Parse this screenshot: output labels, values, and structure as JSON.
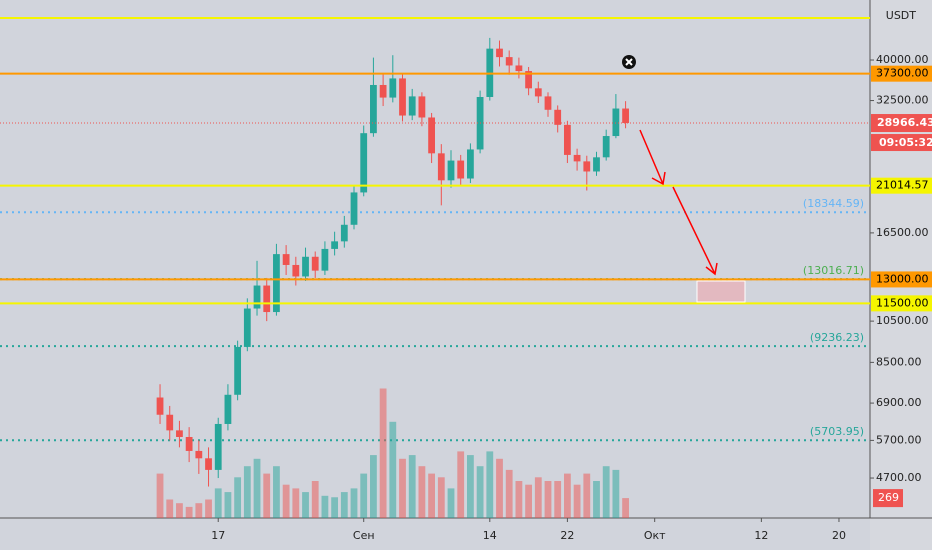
{
  "chart_data": {
    "type": "candlestick",
    "currency": "USDT",
    "log_scale": true,
    "ylim": [
      3830,
      54400
    ],
    "xlim": [
      -16.5,
      73.2
    ],
    "vlim": [
      0,
      7000
    ],
    "up_color": "#26a69a",
    "down_color": "#ef5350",
    "xticks": [
      {
        "value": 6,
        "label": "17"
      },
      {
        "value": 21,
        "label": "Сен"
      },
      {
        "value": 34,
        "label": "14"
      },
      {
        "value": 42,
        "label": "22"
      },
      {
        "value": 51,
        "label": "Окт"
      },
      {
        "value": 62,
        "label": "12"
      },
      {
        "value": 70,
        "label": "20"
      }
    ],
    "yticks": [
      {
        "value": 40000,
        "label": "40000.00"
      },
      {
        "value": 32500,
        "label": "32500.00"
      },
      {
        "value": 16500,
        "label": "16500.00"
      },
      {
        "value": 10500,
        "label": "10500.00"
      },
      {
        "value": 8500,
        "label": "8500.00"
      },
      {
        "value": 6900,
        "label": "6900.00"
      },
      {
        "value": 5700,
        "label": "5700.00"
      },
      {
        "value": 4700,
        "label": "4700.00"
      }
    ],
    "open": [
      7100,
      6500,
      6000,
      5800,
      5400,
      5200,
      4900,
      6200,
      7200,
      9200,
      11200,
      12600,
      11000,
      14800,
      14000,
      13200,
      14600,
      13600,
      15200,
      15800,
      17200,
      20300,
      27500,
      35200,
      33000,
      36400,
      30100,
      33200,
      29800,
      24800,
      21600,
      23900,
      21800,
      25300,
      33100,
      42400,
      40600,
      38900,
      37800,
      34600,
      33200,
      31000,
      28700,
      24600,
      23800,
      22600,
      24300,
      27100,
      31200
    ],
    "high": [
      7600,
      6800,
      6300,
      6100,
      5700,
      5500,
      6400,
      7600,
      9500,
      11800,
      14300,
      13100,
      15600,
      15500,
      14600,
      15300,
      15000,
      15800,
      16600,
      18000,
      21000,
      28600,
      40500,
      37200,
      41000,
      37400,
      34500,
      33900,
      30500,
      26000,
      25200,
      24600,
      26100,
      34200,
      44800,
      44200,
      42000,
      40500,
      38600,
      35800,
      33900,
      31700,
      29300,
      25400,
      24500,
      25000,
      28000,
      33600,
      32400
    ],
    "low": [
      6200,
      5700,
      5500,
      5100,
      4800,
      4500,
      4700,
      6000,
      7000,
      9000,
      10800,
      10500,
      10800,
      13300,
      12600,
      12900,
      13100,
      13300,
      14700,
      15300,
      16800,
      19900,
      27000,
      31600,
      32200,
      29200,
      29400,
      28500,
      23600,
      19000,
      20800,
      21000,
      21300,
      24800,
      32500,
      38700,
      37100,
      36400,
      33400,
      32100,
      29900,
      27600,
      23600,
      22700,
      20500,
      22100,
      23900,
      26800,
      28200
    ],
    "close": [
      6500,
      6000,
      5800,
      5400,
      5200,
      4900,
      6200,
      7200,
      9200,
      11200,
      12600,
      11000,
      14800,
      14000,
      13200,
      14600,
      13600,
      15200,
      15800,
      17200,
      20300,
      27500,
      35200,
      33000,
      36400,
      30100,
      33200,
      29800,
      24800,
      21600,
      23900,
      21800,
      25300,
      33100,
      42400,
      40600,
      38900,
      37800,
      34600,
      33200,
      31000,
      28700,
      24600,
      23800,
      22600,
      24300,
      27100,
      31200,
      28966.43
    ],
    "volume": [
      600,
      250,
      200,
      150,
      200,
      250,
      400,
      350,
      550,
      700,
      800,
      600,
      700,
      450,
      400,
      350,
      500,
      300,
      280,
      350,
      400,
      600,
      850,
      1750,
      1300,
      800,
      850,
      700,
      600,
      550,
      400,
      900,
      850,
      700,
      900,
      800,
      650,
      500,
      450,
      550,
      500,
      500,
      600,
      450,
      600,
      500,
      700,
      650,
      269
    ],
    "last_volume_label": "269",
    "price_line": {
      "value": 28966.43,
      "label": "28966.43",
      "color": "#ef5350"
    },
    "countdown": "09:05:32",
    "levels": [
      {
        "value": 49600,
        "color": "#f5f500",
        "style": "solid"
      },
      {
        "value": 37300,
        "label": "37300.00",
        "color": "#ff9800",
        "style": "solid"
      },
      {
        "value": 21014.57,
        "label": "21014.57",
        "color": "#f5f500",
        "style": "solid"
      },
      {
        "value": 13000,
        "label": "13000.00",
        "color": "#ff9800",
        "style": "solid"
      },
      {
        "value": 11500,
        "label": "11500.00",
        "color": "#f5f500",
        "style": "solid"
      }
    ],
    "fib_levels": [
      {
        "value": 18344.59,
        "label": "(18344.59)",
        "color": "#64b5f6"
      },
      {
        "value": 13016.71,
        "label": "(13016.71)",
        "color": "#4caf50"
      },
      {
        "value": 9236.23,
        "label": "(9236.23)",
        "color": "#26a69a"
      },
      {
        "value": 5703.95,
        "label": "(5703.95)",
        "color": "#26a69a"
      }
    ]
  }
}
